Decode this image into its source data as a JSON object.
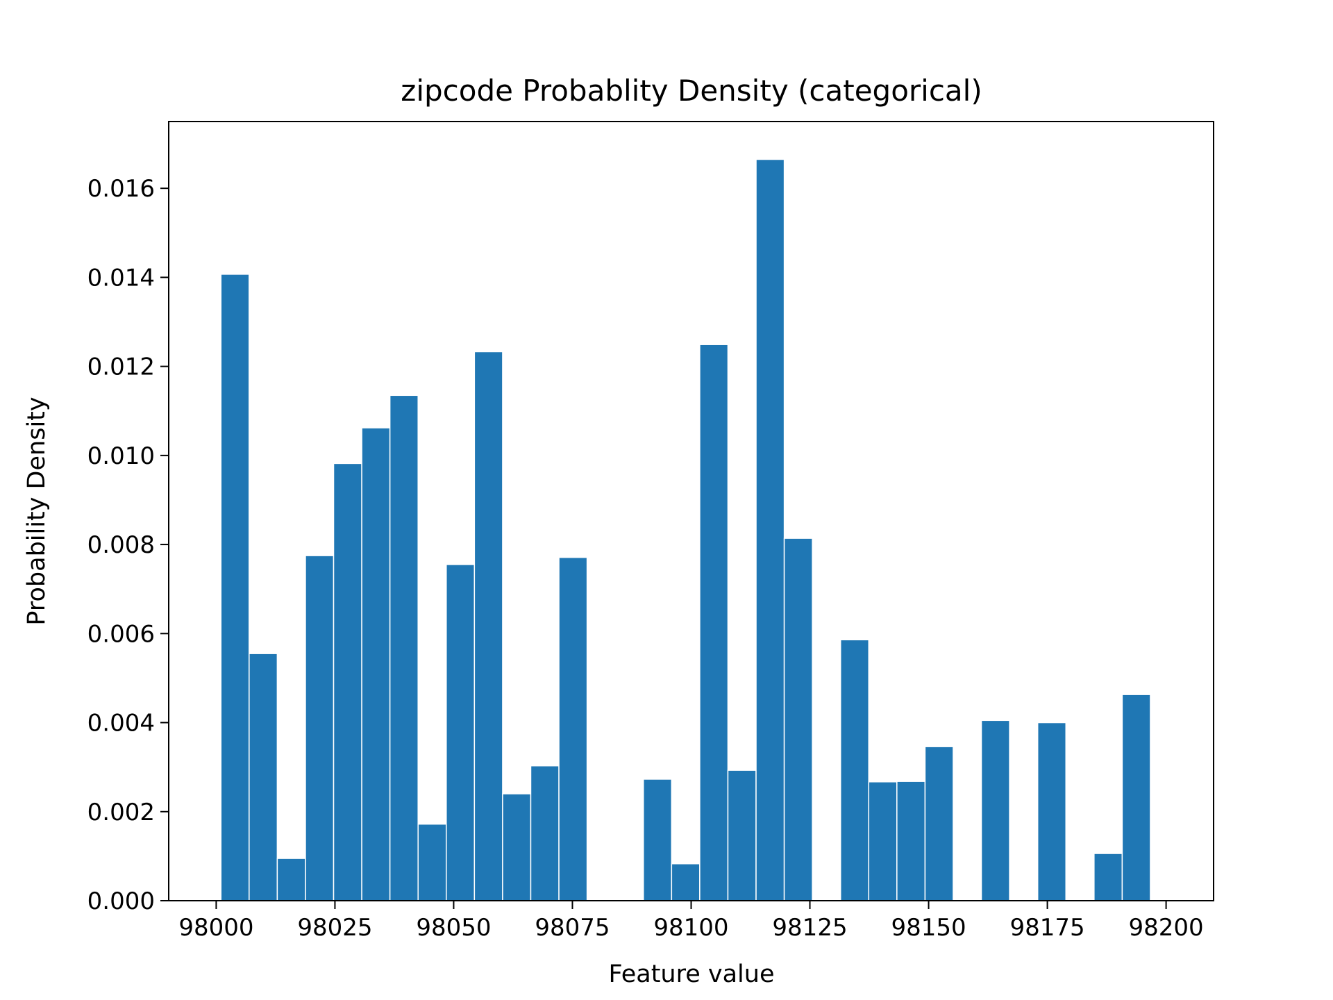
{
  "chart_data": {
    "type": "bar",
    "title": "zipcode Probablity Density (categorical)",
    "xlabel": "Feature value",
    "ylabel": "Probability Density",
    "xlim": [
      97990,
      98210
    ],
    "ylim": [
      0,
      0.0175
    ],
    "xticks": [
      98000,
      98025,
      98050,
      98075,
      98100,
      98125,
      98150,
      98175,
      98200
    ],
    "xtick_labels": [
      "98000",
      "98025",
      "98050",
      "98075",
      "98100",
      "98125",
      "98150",
      "98175",
      "98200"
    ],
    "yticks": [
      0,
      0.002,
      0.004,
      0.006,
      0.008,
      0.01,
      0.012,
      0.014,
      0.016
    ],
    "ytick_labels": [
      "0.000",
      "0.002",
      "0.004",
      "0.006",
      "0.008",
      "0.010",
      "0.012",
      "0.014",
      "0.016"
    ],
    "bar_color": "#1f77b4",
    "bin_width": 5.93,
    "grid": false,
    "bins": [
      {
        "x0": 98001.0,
        "value": 0.01407
      },
      {
        "x0": 98006.93,
        "value": 0.00555
      },
      {
        "x0": 98012.86,
        "value": 0.00095
      },
      {
        "x0": 98018.79,
        "value": 0.00775
      },
      {
        "x0": 98024.72,
        "value": 0.00982
      },
      {
        "x0": 98030.65,
        "value": 0.01062
      },
      {
        "x0": 98036.58,
        "value": 0.01135
      },
      {
        "x0": 98042.51,
        "value": 0.00172
      },
      {
        "x0": 98048.44,
        "value": 0.00755
      },
      {
        "x0": 98054.37,
        "value": 0.01233
      },
      {
        "x0": 98060.3,
        "value": 0.0024
      },
      {
        "x0": 98066.23,
        "value": 0.00303
      },
      {
        "x0": 98072.16,
        "value": 0.00771
      },
      {
        "x0": 98078.09,
        "value": 0
      },
      {
        "x0": 98084.02,
        "value": 0
      },
      {
        "x0": 98089.95,
        "value": 0.00273
      },
      {
        "x0": 98095.88,
        "value": 0.00083
      },
      {
        "x0": 98101.81,
        "value": 0.01249
      },
      {
        "x0": 98107.74,
        "value": 0.00293
      },
      {
        "x0": 98113.67,
        "value": 0.01665
      },
      {
        "x0": 98119.6,
        "value": 0.00814
      },
      {
        "x0": 98125.53,
        "value": 0
      },
      {
        "x0": 98131.46,
        "value": 0.00586
      },
      {
        "x0": 98137.39,
        "value": 0.00267
      },
      {
        "x0": 98143.32,
        "value": 0.00268
      },
      {
        "x0": 98149.25,
        "value": 0.00346
      },
      {
        "x0": 98155.18,
        "value": 0
      },
      {
        "x0": 98161.11,
        "value": 0.00405
      },
      {
        "x0": 98167.04,
        "value": 0
      },
      {
        "x0": 98172.97,
        "value": 0.004
      },
      {
        "x0": 98178.9,
        "value": 0
      },
      {
        "x0": 98184.83,
        "value": 0.00106
      },
      {
        "x0": 98190.76,
        "value": 0.00463
      }
    ]
  }
}
